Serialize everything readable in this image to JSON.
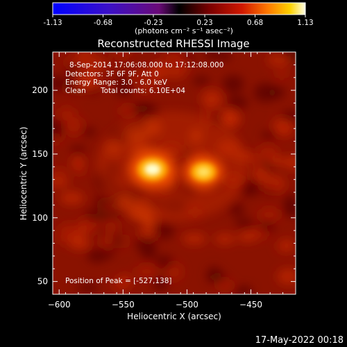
{
  "chart_data": {
    "type": "heatmap",
    "title": "Reconstructed RHESSI Image",
    "xlabel": "Heliocentric X (arcsec)",
    "ylabel": "Heliocentric Y (arcsec)",
    "xlim": [
      -605,
      -415
    ],
    "ylim": [
      40,
      230
    ],
    "x_ticks": [
      -600,
      -550,
      -500,
      -450
    ],
    "y_ticks": [
      50,
      100,
      150,
      200
    ],
    "colorbar": {
      "ticks": [
        -1.13,
        -0.68,
        -0.23,
        0.23,
        0.68,
        1.13
      ],
      "label": "(photons cm⁻² s⁻¹ asec⁻²)",
      "colormap": "blue-purple-red-yellow-white"
    },
    "annotations": [
      "8-Sep-2014 17:06:08.000 to 17:12:08.000",
      "Detectors: 3F 6F 9F, Att 0",
      "Energy Range: 3.0 - 6.0 keV",
      "Clean",
      "Total counts: 6.10E+04"
    ],
    "peak_label": "Position of Peak = [-527,138]",
    "sources": [
      {
        "x": -527,
        "y": 138,
        "peak": 1.13
      },
      {
        "x": -487,
        "y": 136,
        "peak": 0.95
      }
    ],
    "bridge": {
      "x": [
        -520,
        -492
      ],
      "y": 137,
      "peak": 0.5
    },
    "background_level": 0.28
  },
  "footer": {
    "date": "17-May-2022 00:18"
  }
}
